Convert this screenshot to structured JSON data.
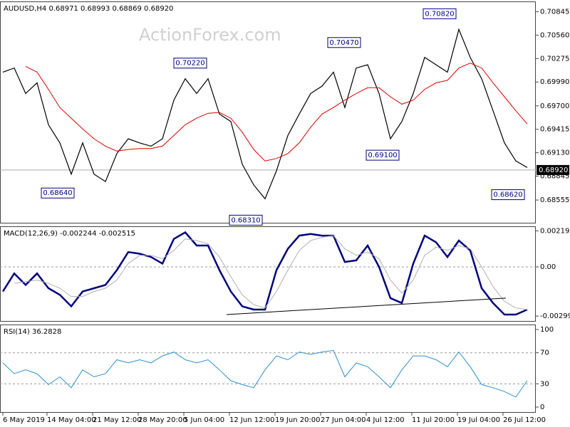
{
  "chart_data": [
    {
      "type": "line",
      "title": "AUDUSD,H4  0.68971 0.68993 0.68869 0.68920",
      "watermark": "ActionForex.com",
      "x": [
        0,
        8,
        16,
        24,
        32,
        40,
        48,
        56,
        64,
        72,
        80,
        88,
        96,
        104,
        112,
        120,
        128,
        136,
        144,
        152,
        160,
        168,
        176,
        184,
        192,
        200,
        208,
        216,
        224,
        232,
        240,
        248,
        256,
        264,
        272,
        280,
        288,
        296,
        304,
        312,
        320,
        328,
        336,
        344,
        352,
        360,
        368
      ],
      "xlim": [
        -2,
        374
      ],
      "ylim": [
        0.6827,
        0.7097
      ],
      "yticks": [
        0.70845,
        {
          "value": 0.7056,
          "label": "0.70560"
        },
        0.70275,
        {
          "value": 0.6999,
          "label": "0.69990"
        },
        {
          "value": 0.697,
          "label": "0.69700"
        },
        0.69415,
        {
          "value": 0.6913,
          "label": "0.69130"
        },
        0.68845,
        0.68555
      ],
      "current_price": {
        "value": 0.6892,
        "label": "0.68920"
      },
      "series": [
        {
          "color": "#000000",
          "values": [
            0.7011,
            0.7016,
            0.6985,
            0.6998,
            0.6947,
            0.6925,
            0.6887,
            0.6925,
            0.6887,
            0.6878,
            0.6912,
            0.693,
            0.6925,
            0.6921,
            0.693,
            0.6977,
            0.7003,
            0.6985,
            0.7003,
            0.696,
            0.6951,
            0.6899,
            0.6874,
            0.6857,
            0.6891,
            0.6934,
            0.696,
            0.6985,
            0.6994,
            0.7011,
            0.6968,
            0.7016,
            0.702,
            0.6985,
            0.693,
            0.6951,
            0.6985,
            0.7029,
            0.702,
            0.7011,
            0.7063,
            0.7029,
            0.7003,
            0.6964,
            0.6925,
            0.6903,
            0.6895
          ]
        },
        {
          "color": "#dd0000",
          "values": [
            null,
            null,
            0.7018,
            0.7011,
            0.699,
            0.6968,
            0.6955,
            0.6942,
            0.693,
            0.6921,
            0.6915,
            0.6917,
            0.6918,
            0.6918,
            0.6921,
            0.6934,
            0.6947,
            0.6955,
            0.6961,
            0.6962,
            0.6955,
            0.6938,
            0.6917,
            0.6903,
            0.6906,
            0.6912,
            0.6925,
            0.6944,
            0.696,
            0.6968,
            0.6977,
            0.6985,
            0.6992,
            0.6992,
            0.6981,
            0.6972,
            0.6977,
            0.699,
            0.6998,
            0.7001,
            0.7016,
            0.7022,
            0.7016,
            0.6998,
            0.6981,
            0.6964,
            0.6948
          ]
        }
      ],
      "annotations": [
        {
          "x": 50,
          "value": 0.6864,
          "label": "0.68640"
        },
        {
          "x": 182,
          "value": 0.6831,
          "label": "0.68310"
        },
        {
          "x": 143,
          "value": 0.7022,
          "label": "0.70220"
        },
        {
          "x": 251,
          "value": 0.7047,
          "label": "0.70470"
        },
        {
          "x": 318,
          "value": 0.7082,
          "label": "0.70820"
        },
        {
          "x": 278,
          "value": 0.691,
          "label": "0.69100"
        },
        {
          "x": 366,
          "value": 0.6862,
          "label": "0.68620"
        }
      ]
    },
    {
      "type": "line",
      "title": "MACD(12,26,9) -0.002244 -0.002515",
      "ylim": [
        -0.003334,
        0.002468
      ],
      "yticks": [
        0.002191,
        {
          "value": 0,
          "label": "0.00"
        },
        -0.002993
      ],
      "series": [
        {
          "color": "#00007f",
          "values": [
            -0.0015,
            -0.0004,
            -0.0011,
            -0.0004,
            -0.0013,
            -0.0017,
            -0.0024,
            -0.0015,
            -0.0013,
            -0.0011,
            -0.0002,
            0.0009,
            0.0008,
            0.0006,
            0.0002,
            0.0017,
            0.0021,
            0.0013,
            0.0013,
            -0.0002,
            -0.0015,
            -0.0024,
            -0.0026,
            -0.0026,
            -0.0002,
            0.0011,
            0.0019,
            0.002,
            0.0019,
            0.0019,
            0.0003,
            0.0004,
            0.0013,
            0.0,
            -0.0019,
            -0.0022,
            0.0002,
            0.0019,
            0.0015,
            0.0006,
            0.0016,
            0.001,
            -0.0013,
            -0.0022,
            -0.0029,
            -0.0029,
            -0.0026
          ]
        },
        {
          "color": "#b0b0b0",
          "values": [
            null,
            -0.001,
            -0.0009,
            -0.0008,
            -0.001,
            -0.0013,
            -0.0018,
            -0.0018,
            -0.0015,
            -0.0013,
            -0.0008,
            0.0002,
            0.0007,
            0.0007,
            0.0005,
            0.001,
            0.0017,
            0.0016,
            0.0014,
            0.0006,
            -0.0006,
            -0.0017,
            -0.0023,
            -0.0025,
            -0.0015,
            -0.0002,
            0.001,
            0.0016,
            0.0018,
            0.0019,
            0.0011,
            0.0007,
            0.0009,
            0.0005,
            -0.0008,
            -0.0016,
            -0.0008,
            0.0007,
            0.0012,
            0.001,
            0.0013,
            0.0011,
            0.0,
            -0.0012,
            -0.0021,
            -0.0025,
            -0.0026
          ]
        }
      ],
      "trendline": {
        "x": [
          157,
          353
        ],
        "values": [
          -0.0029,
          -0.0019
        ]
      }
    },
    {
      "type": "line",
      "title": "RSI(14) 36.2828",
      "ylim": [
        -7.3,
        106.4
      ],
      "yticks": [
        100,
        70,
        30,
        0
      ],
      "levels": [
        70,
        30
      ],
      "series": [
        {
          "color": "#2f8fd0",
          "values": [
            57,
            43,
            48,
            43,
            29,
            39,
            25,
            48,
            39,
            43,
            61,
            57,
            61,
            57,
            66,
            71,
            61,
            57,
            61,
            48,
            34,
            29,
            25,
            48,
            66,
            61,
            71,
            68,
            71,
            73,
            39,
            57,
            52,
            39,
            25,
            48,
            66,
            66,
            61,
            52,
            71,
            52,
            29,
            25,
            20,
            13,
            34
          ]
        }
      ],
      "xticks": [
        {
          "value": 0,
          "label": "6 May 2019"
        },
        {
          "value": 31,
          "label": "14 May 04:00"
        },
        {
          "value": 63,
          "label": "21 May 12:00"
        },
        {
          "value": 95,
          "label": "28 May 20:00"
        },
        {
          "value": 127,
          "label": "5 Jun 04:00"
        },
        {
          "value": 159,
          "label": "12 Jun 12:00"
        },
        {
          "value": 191,
          "label": "19 Jun 20:00"
        },
        {
          "value": 223,
          "label": "27 Jun 04:00"
        },
        {
          "value": 255,
          "label": "4 Jul 12:00"
        },
        {
          "value": 287,
          "label": "11 Jul 20:00"
        },
        {
          "value": 319,
          "label": "19 Jul 04:00"
        },
        {
          "value": 351,
          "label": "26 Jul 12:00"
        }
      ]
    }
  ]
}
